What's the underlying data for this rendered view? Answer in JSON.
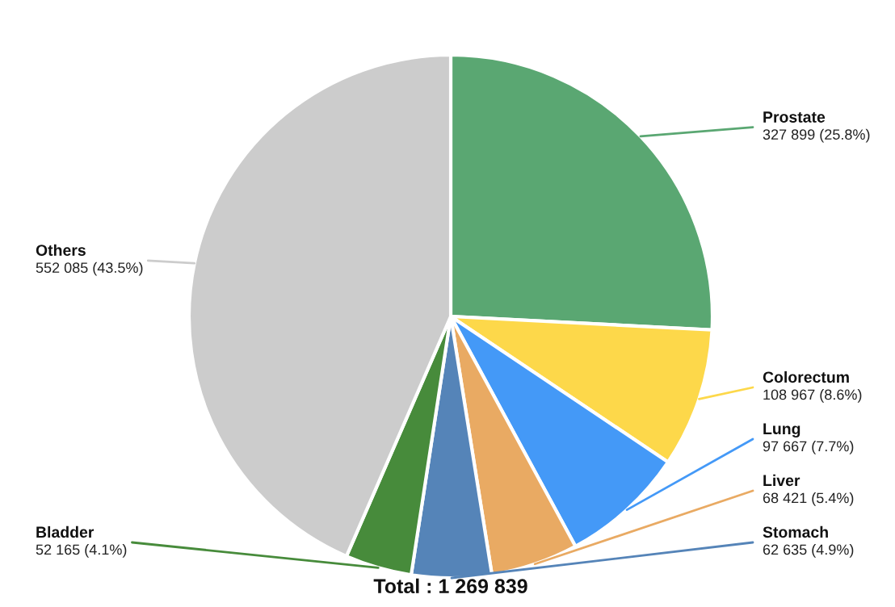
{
  "chart_data": {
    "type": "pie",
    "categories": [
      "Prostate",
      "Colorectum",
      "Lung",
      "Liver",
      "Stomach",
      "Bladder",
      "Others"
    ],
    "values": [
      327899,
      108967,
      97667,
      68421,
      62635,
      52165,
      552085
    ],
    "value_labels": [
      "327 899 (25.8%)",
      "108 967 (8.6%)",
      "97 667 (7.7%)",
      "68 421 (5.4%)",
      "62 635 (4.9%)",
      "52 165 (4.1%)",
      "552 085 (43.5%)"
    ],
    "colors": [
      "#5aa772",
      "#fdd84a",
      "#4499f7",
      "#e9aa63",
      "#5584b8",
      "#478b3b",
      "#cccccc"
    ],
    "annotations": [
      "Total : 1 269 839"
    ],
    "legend": false
  }
}
